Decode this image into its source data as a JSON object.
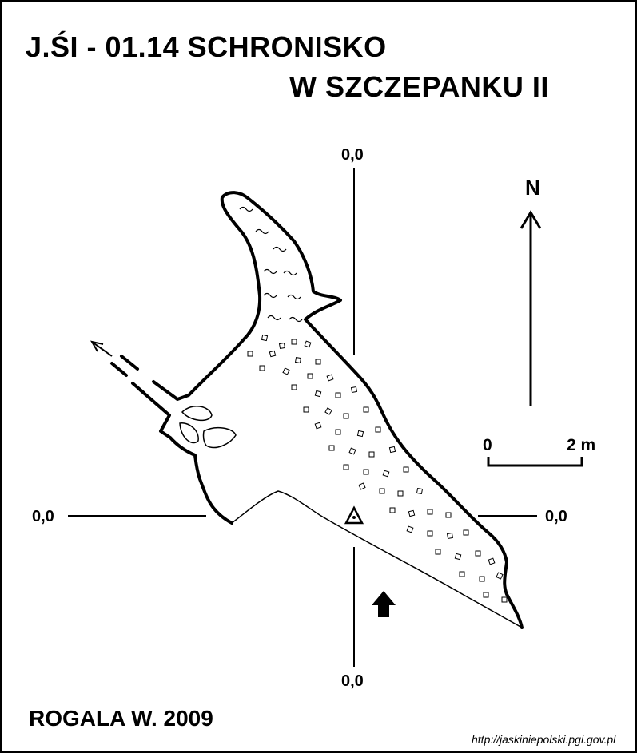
{
  "title": {
    "line1": "J.ŚI - 01.14  SCHRONISKO",
    "line2": "W SZCZEPANKU II"
  },
  "coordinates": {
    "top": "0,0",
    "bottom": "0,0",
    "left": "0,0",
    "right": "0,0"
  },
  "north_label": "N",
  "scale_bar": {
    "start_label": "0",
    "end_label": "2 m"
  },
  "author": "ROGALA W. 2009",
  "source": "http://jaskiniepolski.pgi.gov.pl",
  "symbols": {
    "entrance_arrow": "entrance-arrow-icon",
    "datum_point": "survey-station-triangle-icon",
    "north_arrow": "north-arrow-icon"
  }
}
